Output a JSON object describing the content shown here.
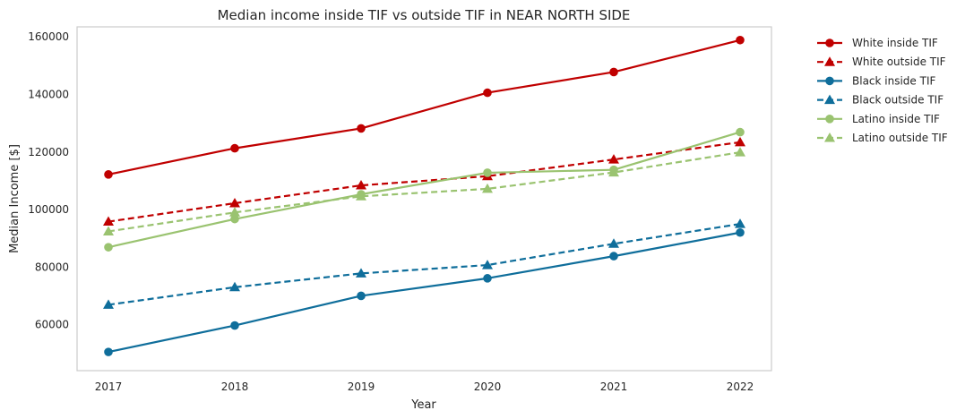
{
  "chart_data": {
    "type": "line",
    "title": "Median income inside TIF vs outside TIF in NEAR NORTH SIDE",
    "xlabel": "Year",
    "ylabel": "Median Income [$]",
    "categories": [
      "2017",
      "2018",
      "2019",
      "2020",
      "2021",
      "2022"
    ],
    "ylim": [
      44000,
      163500
    ],
    "yticks": [
      60000,
      80000,
      100000,
      120000,
      140000,
      160000
    ],
    "grid": false,
    "legend_position": "outside-right",
    "series": [
      {
        "name": "White inside TIF",
        "color": "#c00000",
        "linestyle": "solid",
        "marker": "circle",
        "values": [
          112200,
          121300,
          128200,
          140600,
          147800,
          158900
        ]
      },
      {
        "name": "White outside TIF",
        "color": "#c00000",
        "linestyle": "dashed",
        "marker": "triangle",
        "values": [
          95800,
          102200,
          108400,
          111600,
          117400,
          123400
        ]
      },
      {
        "name": "Black inside TIF",
        "color": "#0f6e9b",
        "linestyle": "solid",
        "marker": "circle",
        "values": [
          50500,
          59700,
          70000,
          76100,
          83800,
          92000
        ]
      },
      {
        "name": "Black outside TIF",
        "color": "#0f6e9b",
        "linestyle": "dashed",
        "marker": "triangle",
        "values": [
          66900,
          73000,
          77800,
          80700,
          88100,
          95000
        ]
      },
      {
        "name": "Latino inside TIF",
        "color": "#9ac370",
        "linestyle": "solid",
        "marker": "circle",
        "values": [
          86900,
          96700,
          105300,
          112800,
          113800,
          126900
        ]
      },
      {
        "name": "Latino outside TIF",
        "color": "#9ac370",
        "linestyle": "dashed",
        "marker": "triangle",
        "values": [
          92400,
          99000,
          104600,
          107200,
          112900,
          119900
        ]
      }
    ]
  }
}
